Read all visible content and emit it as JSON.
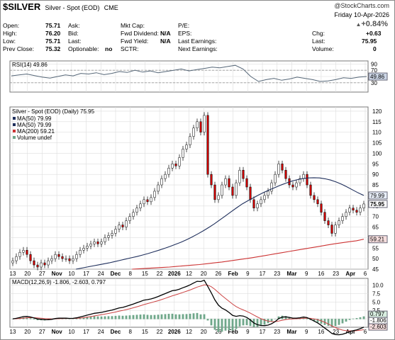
{
  "header": {
    "symbol": "$SILVER",
    "description": "Silver - Spot (EOD)",
    "exchange": "CME",
    "watermark": "@StockCharts.com",
    "day": "Friday",
    "date": "10-Apr-2026",
    "change_pct": "+0.84%"
  },
  "quote": {
    "open_label": "Open:",
    "open": "75.71",
    "high_label": "High:",
    "high": "76.20",
    "low_label": "Low:",
    "low": "75.71",
    "prev_label": "Prev Close:",
    "prev": "75.32",
    "ask_label": "Ask:",
    "bid_label": "Bid:",
    "last_label": "Last:",
    "optionable_label": "Optionable:",
    "optionable": "no",
    "mktcap_label": "Mkt Cap:",
    "fwddiv_label": "Fwd Dividend:",
    "fwddiv": "N/A",
    "fwdyield_label": "Fwd Yield:",
    "fwdyield": "N/A",
    "sctr_label": "SCTR:",
    "pe_label": "P/E:",
    "eps_label": "EPS:",
    "lastearn_label": "Last Earnings:",
    "nextearn_label": "Next Earnings:",
    "chg_label": "Chg:",
    "chg": "+0.63",
    "last2_label": "Last:",
    "last2": "75.95",
    "vol_label": "Volume:",
    "vol": "0"
  },
  "colors": {
    "up": "#ffffff",
    "down": "#cc0000",
    "ma50": "#1f2f5c",
    "ma200": "#cc3333",
    "rsi": "#556677",
    "macd": "#000000",
    "signal": "#cc4444",
    "hist": "#6fa78a",
    "grid": "#dddddd"
  },
  "chart_data": [
    {
      "type": "line",
      "title": "RSI(14) 49.86",
      "ylim": [
        0,
        100
      ],
      "ticks": [
        30,
        50,
        70,
        90
      ],
      "ref": [
        30,
        70
      ],
      "value": 49.86,
      "value_label": "49.86",
      "values": [
        52,
        55,
        58,
        53,
        48,
        45,
        50,
        55,
        52,
        60,
        58,
        62,
        56,
        60,
        66,
        63,
        70,
        64,
        68,
        62,
        66,
        70,
        74,
        68,
        72,
        76,
        80,
        78,
        82,
        86,
        74,
        50,
        34,
        40,
        44,
        38,
        42,
        48,
        44,
        40,
        34,
        36,
        40,
        46,
        44,
        48,
        50
      ]
    },
    {
      "type": "candlestick",
      "title": "Silver - Spot (EOD) (Daily) 75.95",
      "legend": [
        "MA(50) 79.99",
        "MA(50) 79.99",
        "MA(200) 59.21",
        "Volume undef"
      ],
      "ylim": [
        45,
        122
      ],
      "yticks": [
        45,
        50,
        55,
        60,
        65,
        70,
        75,
        80,
        85,
        90,
        95,
        100,
        105,
        110,
        115,
        120
      ],
      "xticks": [
        "13",
        "20",
        "27",
        "Nov",
        "10",
        "17",
        "24",
        "Dec",
        "8",
        "15",
        "22",
        "2026",
        "12",
        "20",
        "26",
        "Feb",
        "9",
        "17",
        "23",
        "Mar",
        "9",
        "16",
        "23",
        "Apr",
        "6"
      ],
      "last": 75.95,
      "last_label": "75.95",
      "ma50_last": 79.99,
      "ma50_label": "79.99",
      "ma200_last": 59.21,
      "ma200_label": "59.21",
      "close": [
        49,
        51,
        53,
        54,
        52,
        49,
        47,
        46,
        48,
        47,
        49,
        50,
        52,
        51,
        50,
        50,
        49,
        50,
        52,
        54,
        55,
        56,
        57,
        58,
        57,
        58,
        60,
        61,
        62,
        64,
        66,
        65,
        68,
        70,
        72,
        74,
        76,
        78,
        77,
        79,
        82,
        85,
        88,
        90,
        93,
        95,
        94,
        98,
        102,
        104,
        108,
        112,
        115,
        110,
        118,
        90,
        85,
        78,
        80,
        85,
        88,
        84,
        80,
        86,
        92,
        88,
        84,
        78,
        74,
        76,
        78,
        80,
        82,
        86,
        90,
        95,
        92,
        88,
        85,
        84,
        86,
        88,
        90,
        85,
        80,
        78,
        76,
        72,
        68,
        66,
        62,
        66,
        68,
        70,
        72,
        74,
        73,
        72,
        74,
        75.95
      ],
      "ma50": [
        45,
        45.5,
        46,
        46.5,
        47,
        47.5,
        48,
        48.6,
        49.2,
        49.8,
        50.4,
        51,
        51.7,
        52.4,
        53.2,
        54,
        54.9,
        55.8,
        56.8,
        57.8,
        59,
        60.3,
        61.7,
        63.2,
        64.8,
        66.5,
        68.4,
        70.3,
        72.2,
        74.1,
        75.9,
        77.4,
        78.8,
        80.2,
        81.5,
        82.7,
        83.8,
        84.9,
        85.9,
        86.8,
        87.5,
        88,
        88.3,
        88.4,
        88.3,
        87.9,
        87.3,
        86.4,
        85.3,
        84,
        82.6,
        81.2,
        79.99
      ],
      "ma200": [
        45,
        45.2,
        45.4,
        45.6,
        45.8,
        46,
        46.3,
        46.6,
        46.9,
        47.2,
        47.6,
        48,
        48.4,
        48.9,
        49.4,
        49.9,
        50.4,
        51,
        51.6,
        52.2,
        52.8,
        53.4,
        54,
        54.6,
        55.2,
        55.8,
        56.4,
        57,
        57.5,
        58,
        58.5,
        59.21
      ]
    },
    {
      "type": "line",
      "title": "MACD(12,26,9) -1.806, -2.603, 0.797",
      "ylim": [
        -2.5,
        12
      ],
      "yticks": [
        0,
        2.5,
        5,
        7.5,
        10
      ],
      "macd_label": "-1.806",
      "signal_label": "-2.603",
      "hist_label": "0.797",
      "macd": -1.806,
      "signal": -2.603,
      "hist": 0.797,
      "xticks": [
        "13",
        "20",
        "27",
        "Nov",
        "10",
        "17",
        "24",
        "Dec",
        "8",
        "15",
        "22",
        "2026",
        "12",
        "20",
        "26",
        "Feb",
        "9",
        "17",
        "23",
        "Mar",
        "9",
        "16",
        "23",
        "Apr",
        "6"
      ]
    }
  ]
}
